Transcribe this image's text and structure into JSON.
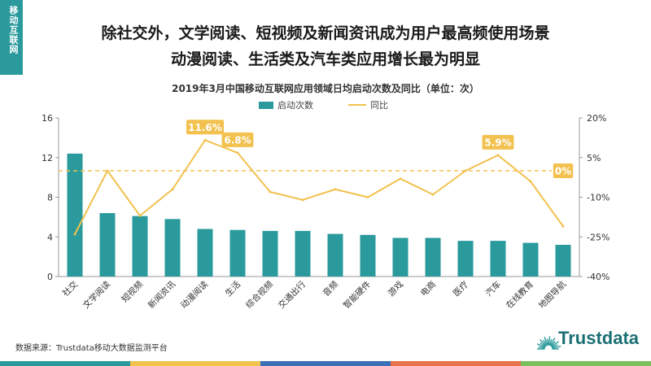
{
  "corner_label": "移动互联网",
  "headline": {
    "line1": "除社交外，文学阅读、短视频及新闻资讯成为用户最高频使用场景",
    "line2": "动漫阅读、生活类及汽车类应用增长最为明显"
  },
  "source": "数据来源：Trustdata移动大数据监测平台",
  "logo": {
    "text": "Trustdata"
  },
  "footer_colors": [
    "#2a9a9c",
    "#f2c14e",
    "#3b6fb6",
    "#e8734a",
    "#7bbf5a"
  ],
  "colors": {
    "bar": "#2a9a9c",
    "line": "#f2c14e",
    "label_box": "#f2c14e"
  },
  "chart_data": {
    "type": "bar",
    "title": "2019年3月中国移动互联网应用领域日均启动次数及同比（单位：次）",
    "categories": [
      "社交",
      "文学阅读",
      "短视频",
      "新闻资讯",
      "动漫阅读",
      "生活",
      "综合视频",
      "交通出行",
      "音频",
      "智能硬件",
      "游戏",
      "电商",
      "医疗",
      "汽车",
      "在线教育",
      "地图导航"
    ],
    "series": [
      {
        "name": "启动次数",
        "type": "bar",
        "axis": "left",
        "values": [
          12.4,
          6.4,
          6.1,
          5.8,
          4.8,
          4.7,
          4.6,
          4.6,
          4.3,
          4.2,
          3.9,
          3.9,
          3.6,
          3.6,
          3.4,
          3.2
        ]
      },
      {
        "name": "同比",
        "type": "line",
        "axis": "right",
        "values": [
          -24,
          0,
          -17,
          -7,
          11.6,
          6.8,
          -8,
          -11,
          -7,
          -10,
          -3,
          -9,
          0,
          5.9,
          -4,
          -21
        ]
      }
    ],
    "y_left": {
      "min": 0,
      "max": 16,
      "ticks": [
        0,
        4,
        8,
        12,
        16
      ]
    },
    "y_right": {
      "min": -40,
      "max": 20,
      "ticks": [
        "20%",
        "5%",
        "-10%",
        "-25%",
        "-40%"
      ]
    },
    "reference_line": {
      "value": 0,
      "label": "0%",
      "style": "dashed"
    },
    "annotations": [
      {
        "index": 4,
        "label": "11.6%"
      },
      {
        "index": 5,
        "label": "6.8%"
      },
      {
        "index": 13,
        "label": "5.9%"
      }
    ],
    "legend_position": "top-center"
  }
}
